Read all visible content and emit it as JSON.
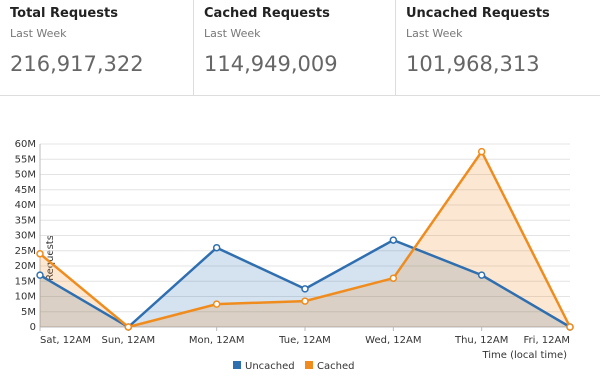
{
  "stats": [
    {
      "title": "Total Requests",
      "subtitle": "Last Week",
      "value": "216,917,322"
    },
    {
      "title": "Cached Requests",
      "subtitle": "Last Week",
      "value": "114,949,009"
    },
    {
      "title": "Uncached Requests",
      "subtitle": "Last Week",
      "value": "101,968,313"
    }
  ],
  "chart_data": {
    "type": "area",
    "y_label": "Requests",
    "x_label": "Time (local time)",
    "categories": [
      "Sat, 12AM",
      "Sun, 12AM",
      "Mon, 12AM",
      "Tue, 12AM",
      "Wed, 12AM",
      "Thu, 12AM",
      "Fri, 12AM"
    ],
    "series": [
      {
        "name": "Uncached",
        "color": "#2f6fb0",
        "values": [
          17000000,
          0,
          26000000,
          12500000,
          28500000,
          17000000,
          0
        ]
      },
      {
        "name": "Cached",
        "color": "#f08c1e",
        "values": [
          24000000,
          0,
          7500000,
          8500000,
          16000000,
          57500000,
          0
        ]
      }
    ],
    "ylim": [
      0,
      60000000
    ],
    "yticks": [
      0,
      {
        "value": 5000000,
        "label": "5M"
      },
      {
        "value": 10000000,
        "label": "10M"
      },
      {
        "value": 15000000,
        "label": "15M"
      },
      {
        "value": 20000000,
        "label": "20M"
      },
      {
        "value": 25000000,
        "label": "25M"
      },
      {
        "value": 30000000,
        "label": "30M"
      },
      {
        "value": 35000000,
        "label": "35M"
      },
      {
        "value": 40000000,
        "label": "40M"
      },
      {
        "value": 45000000,
        "label": "45M"
      },
      {
        "value": 50000000,
        "label": "50M"
      },
      {
        "value": 55000000,
        "label": "55M"
      },
      {
        "value": 60000000,
        "label": "60M"
      }
    ],
    "grid": true
  }
}
